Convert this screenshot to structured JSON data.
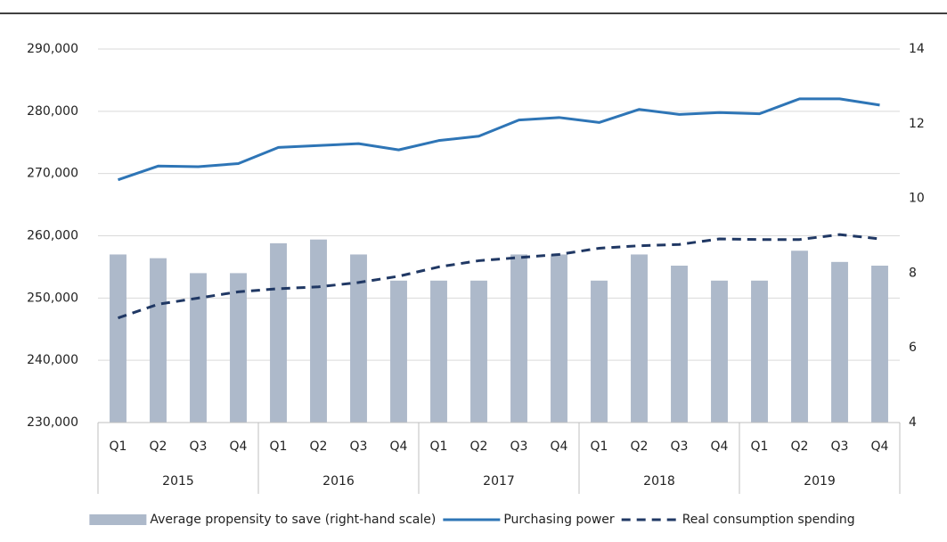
{
  "chart_data": {
    "type": "combo",
    "categories": [
      "Q1",
      "Q2",
      "Q3",
      "Q4",
      "Q1",
      "Q2",
      "Q3",
      "Q4",
      "Q1",
      "Q2",
      "Q3",
      "Q4",
      "Q1",
      "Q2",
      "Q3",
      "Q4",
      "Q1",
      "Q2",
      "Q3",
      "Q4"
    ],
    "groups": [
      "2015",
      "2016",
      "2017",
      "2018",
      "2019"
    ],
    "ylim": [
      230000,
      290000
    ],
    "yticks": [
      {
        "value": 230000,
        "label": "230,000"
      },
      {
        "value": 240000,
        "label": "240,000"
      },
      {
        "value": 250000,
        "label": "250,000"
      },
      {
        "value": 260000,
        "label": "260,000"
      },
      {
        "value": 270000,
        "label": "270,000"
      },
      {
        "value": 280000,
        "label": "280,000"
      },
      {
        "value": 290000,
        "label": "290,000"
      }
    ],
    "y2lim": [
      4,
      14
    ],
    "y2ticks": [
      4,
      6,
      8,
      10,
      12,
      14
    ],
    "grid": true,
    "legend": "bottom",
    "series": [
      {
        "name": "Average propensity to save (right-hand scale)",
        "type": "bar",
        "axis": "y2",
        "color": "#adb9ca",
        "values": [
          8.5,
          8.4,
          8.0,
          8.0,
          8.8,
          8.9,
          8.5,
          7.8,
          7.8,
          7.8,
          8.5,
          8.5,
          7.8,
          8.5,
          8.2,
          7.8,
          7.8,
          8.6,
          8.3,
          8.2
        ]
      },
      {
        "name": "Purchasing power",
        "type": "line",
        "color": "#2e75b6",
        "linestyle": "solid",
        "values": [
          269000,
          271200,
          271100,
          271600,
          274200,
          274500,
          274800,
          273800,
          275300,
          276000,
          278600,
          279000,
          278200,
          280300,
          279500,
          279800,
          279600,
          282000,
          282000,
          281000
        ]
      },
      {
        "name": "Real consumption spending",
        "type": "line",
        "color": "#203864",
        "linestyle": "dashed",
        "values": [
          246800,
          249000,
          250000,
          251000,
          251500,
          251800,
          252500,
          253500,
          255000,
          256000,
          256500,
          257000,
          258000,
          258400,
          258600,
          259500,
          259400,
          259400,
          260200,
          259500
        ]
      }
    ]
  }
}
